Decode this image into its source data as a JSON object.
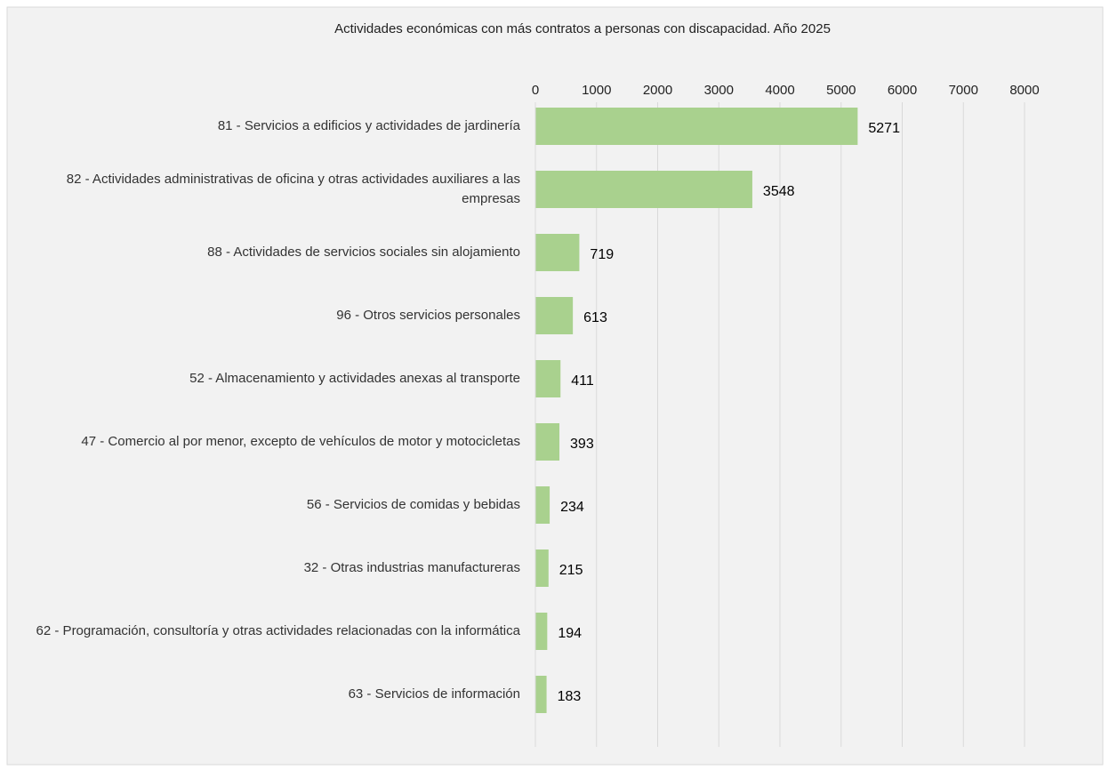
{
  "chart_data": {
    "type": "bar",
    "orientation": "horizontal",
    "title": "Actividades económicas con más contratos a personas con discapacidad. Año 2025",
    "categories": [
      "81 - Servicios a edificios y actividades de jardinería",
      "82 - Actividades administrativas de oficina y otras actividades auxiliares a las empresas",
      "88 - Actividades de servicios sociales sin alojamiento",
      "96 - Otros servicios personales",
      "52 - Almacenamiento y actividades anexas al transporte",
      "47 - Comercio al por menor, excepto de vehículos de motor y motocicletas",
      "56 - Servicios de comidas y bebidas",
      "32 - Otras industrias manufactureras",
      "62 - Programación, consultoría y otras actividades relacionadas con la informática",
      "63 - Servicios de información"
    ],
    "values": [
      5271,
      3548,
      719,
      613,
      411,
      393,
      234,
      215,
      194,
      183
    ],
    "color": "#a9d18e",
    "xlim": [
      0,
      8000
    ],
    "xticks": [
      0,
      1000,
      2000,
      3000,
      4000,
      5000,
      6000,
      7000,
      8000
    ],
    "grid": true
  }
}
